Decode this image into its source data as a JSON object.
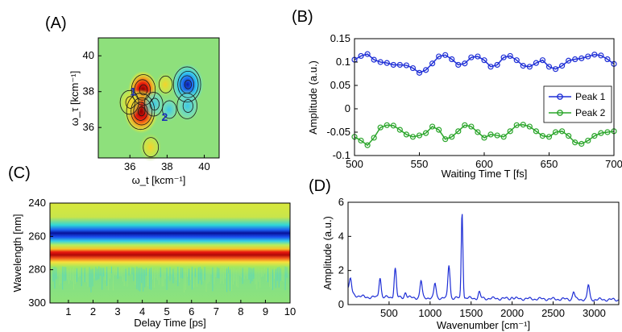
{
  "chart_data": [
    {
      "panel": "(A)",
      "type": "heatmap",
      "subtype": "2D contour map",
      "xlabel": "ω_t [kcm⁻¹]",
      "ylabel": "ω_τ [kcm⁻¹]",
      "xlim": [
        34.3,
        40.8
      ],
      "ylim": [
        34.3,
        41.0
      ],
      "xticks": [
        "36",
        "38",
        "40"
      ],
      "yticks": [
        "36",
        "38",
        "40"
      ],
      "colormap": "jet",
      "features": [
        {
          "x": 36.7,
          "y": 38.1,
          "level": 0.75
        },
        {
          "x": 36.6,
          "y": 36.9,
          "level": 1.0
        },
        {
          "x": 36.0,
          "y": 37.4,
          "level": 0.45
        },
        {
          "x": 37.3,
          "y": 37.3,
          "level": -0.45
        },
        {
          "x": 38.1,
          "y": 37.0,
          "level": -0.25
        },
        {
          "x": 39.1,
          "y": 38.4,
          "level": -0.95
        },
        {
          "x": 39.1,
          "y": 37.2,
          "level": -0.55
        },
        {
          "x": 37.1,
          "y": 34.9,
          "level": 0.35
        },
        {
          "x": 37.9,
          "y": 38.4,
          "level": 0.2
        }
      ],
      "annotations": [
        {
          "text": "1",
          "x": 36.0,
          "y": 38.0
        },
        {
          "text": "2",
          "x": 37.7,
          "y": 36.6
        }
      ]
    },
    {
      "panel": "(B)",
      "type": "line",
      "xlabel": "Waiting Time T [fs]",
      "ylabel": "Amplitude (a.u.)",
      "xlim": [
        500,
        700
      ],
      "ylim": [
        -0.1,
        0.15
      ],
      "xticks": [
        "500",
        "550",
        "600",
        "650",
        "700"
      ],
      "yticks": [
        "-0.1",
        "-0.05",
        "0",
        "0.05",
        "0.1",
        "0.15"
      ],
      "legend_position": "center-right",
      "x": [
        500,
        505,
        510,
        515,
        520,
        525,
        530,
        535,
        540,
        545,
        550,
        555,
        560,
        565,
        570,
        575,
        580,
        585,
        590,
        595,
        600,
        605,
        610,
        615,
        620,
        625,
        630,
        635,
        640,
        645,
        650,
        655,
        660,
        665,
        670,
        675,
        680,
        685,
        690,
        695,
        700
      ],
      "series": [
        {
          "name": "Peak 1",
          "color": "#1f2fd6",
          "values": [
            0.105,
            0.113,
            0.117,
            0.105,
            0.1,
            0.098,
            0.094,
            0.094,
            0.093,
            0.087,
            0.077,
            0.083,
            0.097,
            0.112,
            0.115,
            0.106,
            0.094,
            0.097,
            0.11,
            0.112,
            0.104,
            0.09,
            0.094,
            0.11,
            0.113,
            0.104,
            0.092,
            0.09,
            0.098,
            0.104,
            0.09,
            0.085,
            0.092,
            0.103,
            0.106,
            0.108,
            0.112,
            0.116,
            0.114,
            0.106,
            0.096
          ]
        },
        {
          "name": "Peak 2",
          "color": "#2aa52a",
          "values": [
            -0.06,
            -0.068,
            -0.078,
            -0.062,
            -0.04,
            -0.035,
            -0.036,
            -0.045,
            -0.055,
            -0.06,
            -0.057,
            -0.052,
            -0.038,
            -0.045,
            -0.065,
            -0.06,
            -0.048,
            -0.035,
            -0.038,
            -0.05,
            -0.062,
            -0.055,
            -0.057,
            -0.06,
            -0.048,
            -0.035,
            -0.034,
            -0.038,
            -0.048,
            -0.058,
            -0.06,
            -0.05,
            -0.048,
            -0.058,
            -0.072,
            -0.075,
            -0.068,
            -0.058,
            -0.052,
            -0.05,
            -0.048
          ]
        }
      ]
    },
    {
      "panel": "(C)",
      "type": "heatmap",
      "xlabel": "Delay Time [ps]",
      "ylabel": "Wavelength [nm]",
      "xlim": [
        0.25,
        10
      ],
      "ylim": [
        240,
        300
      ],
      "y_reversed": true,
      "xticks": [
        "1",
        "2",
        "3",
        "4",
        "5",
        "6",
        "7",
        "8",
        "9",
        "10"
      ],
      "yticks": [
        "240",
        "260",
        "280",
        "300"
      ],
      "colormap": "jet",
      "bands": [
        {
          "wavelength": 264.5,
          "sign": "negative"
        },
        {
          "wavelength": 274.5,
          "sign": "positive"
        }
      ]
    },
    {
      "panel": "(D)",
      "type": "line",
      "xlabel": "Wavenumber [cm⁻¹]",
      "ylabel": "Amplitude (a.u.)",
      "xlim": [
        0,
        3300
      ],
      "ylim": [
        0,
        6
      ],
      "xticks": [
        "500",
        "1000",
        "1500",
        "2000",
        "2500",
        "3000"
      ],
      "yticks": [
        "0",
        "2",
        "4",
        "6"
      ],
      "series": [
        {
          "color": "#1f2fd6",
          "baseline": 0.45,
          "peaks": [
            {
              "x": 30,
              "y": 1.2
            },
            {
              "x": 390,
              "y": 1.65
            },
            {
              "x": 575,
              "y": 2.15
            },
            {
              "x": 700,
              "y": 0.75
            },
            {
              "x": 890,
              "y": 1.45
            },
            {
              "x": 1060,
              "y": 1.3
            },
            {
              "x": 1230,
              "y": 2.4
            },
            {
              "x": 1390,
              "y": 5.55
            },
            {
              "x": 1600,
              "y": 0.8
            },
            {
              "x": 2000,
              "y": 0.55
            },
            {
              "x": 2750,
              "y": 0.9
            },
            {
              "x": 2930,
              "y": 1.3
            }
          ]
        }
      ]
    }
  ]
}
